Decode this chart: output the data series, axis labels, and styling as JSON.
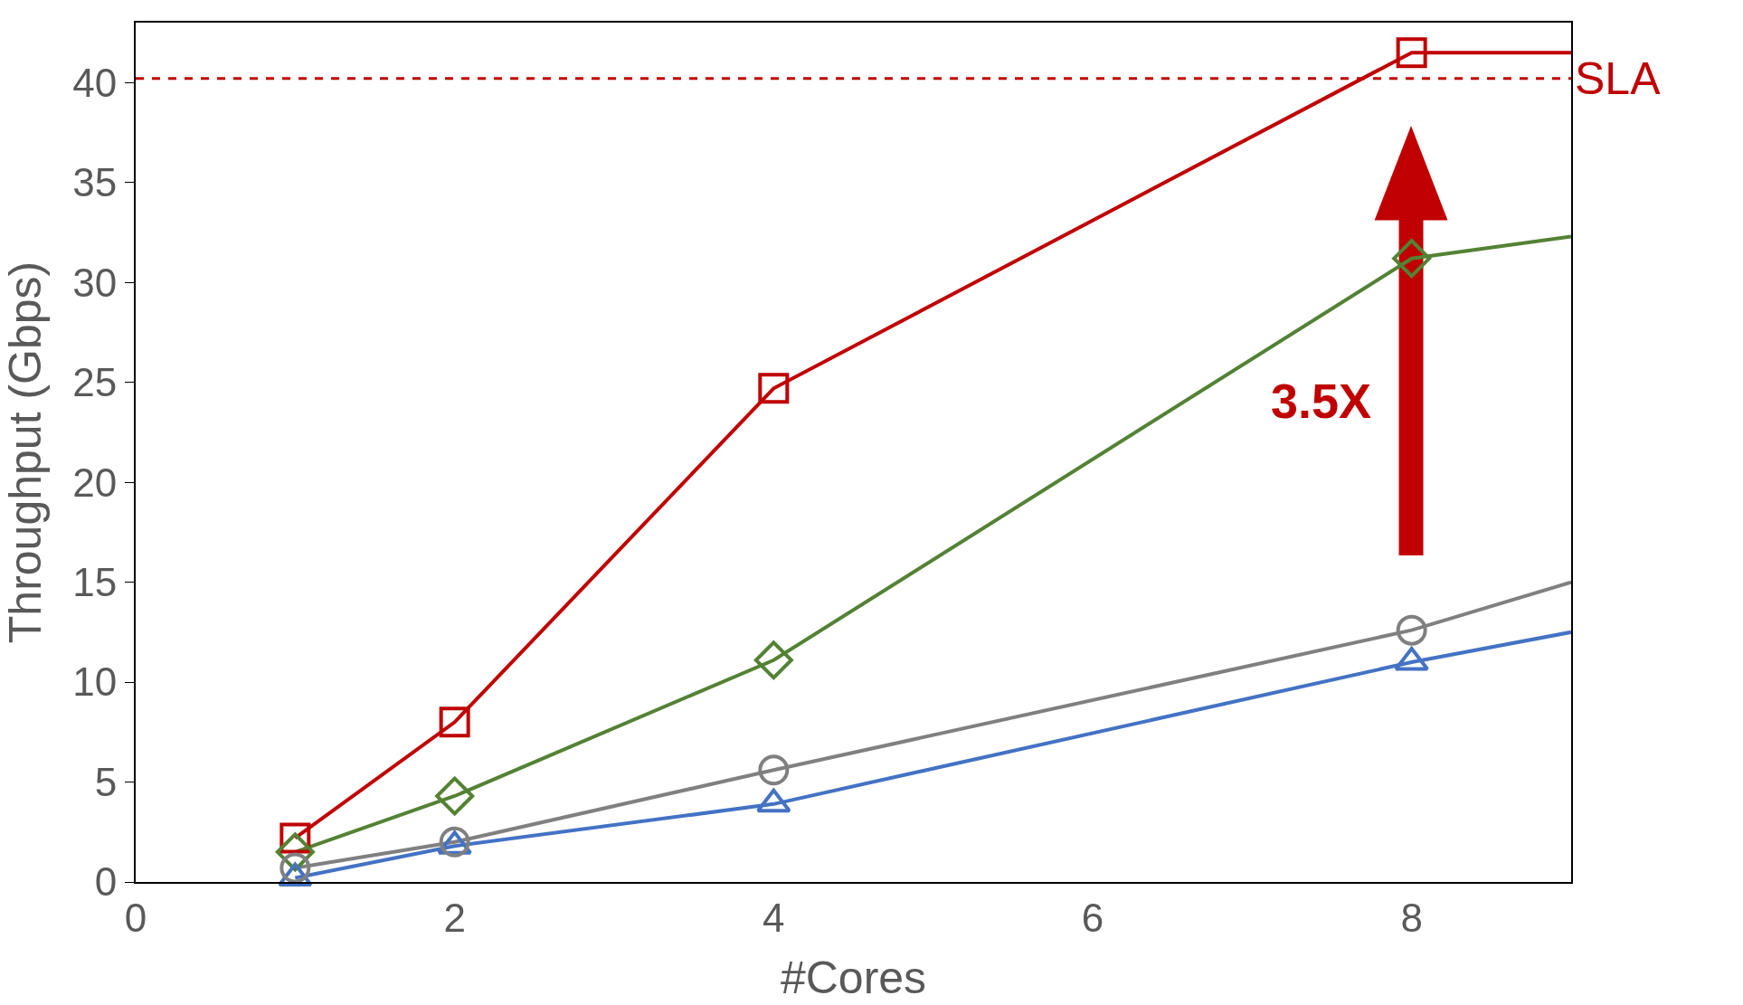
{
  "chart_data": {
    "type": "line",
    "xlabel": "#Cores",
    "ylabel": "Throughput (Gbps)",
    "x": [
      1,
      2,
      4,
      8,
      9
    ],
    "series": [
      {
        "color": "#c00000",
        "marker": "square",
        "values": [
          2.2,
          8,
          24.7,
          41.5,
          41.5
        ]
      },
      {
        "color": "#548235",
        "marker": "diamond",
        "values": [
          1.5,
          4.3,
          11.1,
          31.2,
          32.3
        ]
      },
      {
        "color": "#4472c4",
        "marker": "triangle",
        "values": [
          0.2,
          1.8,
          3.9,
          11,
          12.5
        ]
      },
      {
        "color": "#808080",
        "marker": "circle",
        "values": [
          0.7,
          2.0,
          5.6,
          12.6,
          15
        ]
      }
    ],
    "xlim": [
      0,
      9
    ],
    "xticks": [
      0,
      2,
      4,
      6,
      8
    ],
    "ylim": [
      0,
      43
    ],
    "yticks": [
      0,
      5,
      10,
      15,
      20,
      25,
      30,
      35,
      40
    ],
    "ref_lines": [
      {
        "axis": "y",
        "value": 40.2,
        "label": "SLA",
        "color": "#c00000",
        "line_style": "dashed"
      }
    ],
    "annotations": [
      "3.5X"
    ]
  }
}
